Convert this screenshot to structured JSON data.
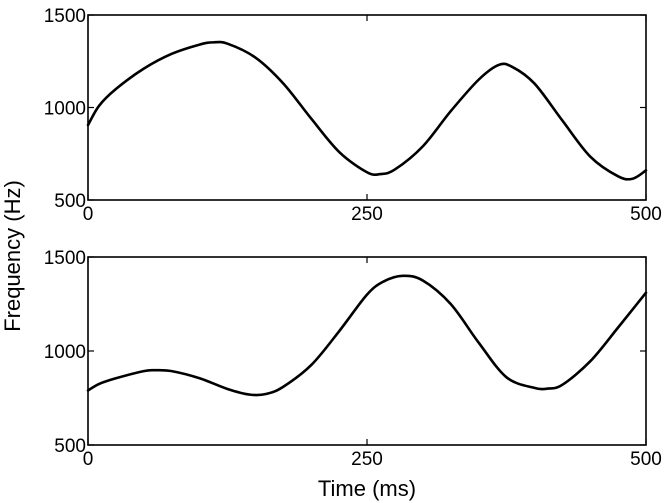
{
  "chart_data": [
    {
      "type": "line",
      "panel": "top",
      "xlim": [
        0,
        500
      ],
      "ylim": [
        500,
        1500
      ],
      "xticks": [
        0,
        250,
        500
      ],
      "yticks": [
        500,
        1000,
        1500
      ],
      "xtick_labels": [
        "0",
        "250",
        "500"
      ],
      "ytick_labels": [
        "500",
        "1000",
        "1500"
      ],
      "grid": false,
      "series": [
        {
          "x": [
            0,
            10,
            25,
            50,
            75,
            100,
            112,
            125,
            150,
            175,
            200,
            225,
            250,
            262,
            275,
            300,
            325,
            350,
            368,
            380,
            400,
            425,
            450,
            475,
            488,
            500
          ],
          "y": [
            905,
            1010,
            1100,
            1210,
            1290,
            1340,
            1352,
            1345,
            1270,
            1130,
            940,
            760,
            650,
            640,
            665,
            790,
            980,
            1150,
            1230,
            1220,
            1130,
            930,
            735,
            628,
            615,
            660
          ]
        }
      ]
    },
    {
      "type": "line",
      "panel": "bottom",
      "xlim": [
        0,
        500
      ],
      "ylim": [
        500,
        1500
      ],
      "xticks": [
        0,
        250,
        500
      ],
      "yticks": [
        500,
        1000,
        1500
      ],
      "xtick_labels": [
        "0",
        "250",
        "500"
      ],
      "ytick_labels": [
        "500",
        "1000",
        "1500"
      ],
      "grid": false,
      "series": [
        {
          "x": [
            0,
            10,
            25,
            50,
            60,
            75,
            100,
            125,
            145,
            160,
            175,
            200,
            225,
            250,
            265,
            282,
            300,
            325,
            350,
            375,
            400,
            412,
            425,
            450,
            475,
            500
          ],
          "y": [
            790,
            825,
            855,
            893,
            898,
            893,
            855,
            798,
            768,
            772,
            810,
            925,
            1105,
            1300,
            1370,
            1400,
            1375,
            1250,
            1045,
            860,
            804,
            800,
            820,
            945,
            1125,
            1310
          ]
        }
      ]
    }
  ],
  "labels": {
    "ylabel": "Frequency (Hz)",
    "xlabel": "Time (ms)"
  }
}
